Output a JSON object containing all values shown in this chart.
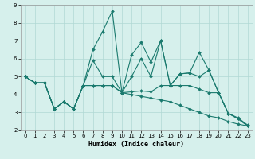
{
  "xlabel": "Humidex (Indice chaleur)",
  "bg_color": "#d6f0ec",
  "grid_color": "#b0d8d4",
  "line_color": "#1a7a6e",
  "xlim": [
    -0.5,
    23.5
  ],
  "ylim": [
    2,
    9
  ],
  "yticks": [
    2,
    3,
    4,
    5,
    6,
    7,
    8,
    9
  ],
  "xticks": [
    0,
    1,
    2,
    3,
    4,
    5,
    6,
    7,
    8,
    9,
    10,
    11,
    12,
    13,
    14,
    15,
    16,
    17,
    18,
    19,
    20,
    21,
    22,
    23
  ],
  "series": [
    {
      "x": [
        0,
        1,
        2,
        3,
        4,
        5,
        6,
        7,
        8,
        9,
        10,
        11,
        12,
        13,
        14,
        15,
        16,
        17,
        18,
        19,
        20,
        21,
        22,
        23
      ],
      "y": [
        5.0,
        4.65,
        4.65,
        3.2,
        3.6,
        3.2,
        4.5,
        6.5,
        7.5,
        8.65,
        4.1,
        6.2,
        6.9,
        5.8,
        7.0,
        4.5,
        5.15,
        5.2,
        6.35,
        5.35,
        4.1,
        2.95,
        2.7,
        2.3
      ]
    },
    {
      "x": [
        0,
        1,
        2,
        3,
        4,
        5,
        6,
        7,
        8,
        9,
        10,
        11,
        12,
        13,
        14,
        15,
        16,
        17,
        18,
        19,
        20,
        21,
        22,
        23
      ],
      "y": [
        5.0,
        4.65,
        4.65,
        3.2,
        3.6,
        3.2,
        4.5,
        5.9,
        5.0,
        5.0,
        4.1,
        5.0,
        6.0,
        5.0,
        7.0,
        4.5,
        5.15,
        5.2,
        5.0,
        5.35,
        4.1,
        2.95,
        2.65,
        2.25
      ]
    },
    {
      "x": [
        0,
        1,
        2,
        3,
        4,
        5,
        6,
        7,
        8,
        9,
        10,
        11,
        12,
        13,
        14,
        15,
        16,
        17,
        18,
        19,
        20,
        21,
        22,
        23
      ],
      "y": [
        5.0,
        4.65,
        4.65,
        3.2,
        3.6,
        3.2,
        4.5,
        4.5,
        4.5,
        4.5,
        4.1,
        4.15,
        4.2,
        4.15,
        4.5,
        4.5,
        4.5,
        4.5,
        4.3,
        4.1,
        4.1,
        2.95,
        2.65,
        2.25
      ]
    },
    {
      "x": [
        0,
        1,
        2,
        3,
        4,
        5,
        6,
        7,
        8,
        9,
        10,
        11,
        12,
        13,
        14,
        15,
        16,
        17,
        18,
        19,
        20,
        21,
        22,
        23
      ],
      "y": [
        5.0,
        4.65,
        4.65,
        3.2,
        3.6,
        3.2,
        4.5,
        4.5,
        4.5,
        4.5,
        4.1,
        4.0,
        3.9,
        3.8,
        3.7,
        3.6,
        3.4,
        3.2,
        3.0,
        2.8,
        2.7,
        2.5,
        2.35,
        2.25
      ]
    }
  ]
}
